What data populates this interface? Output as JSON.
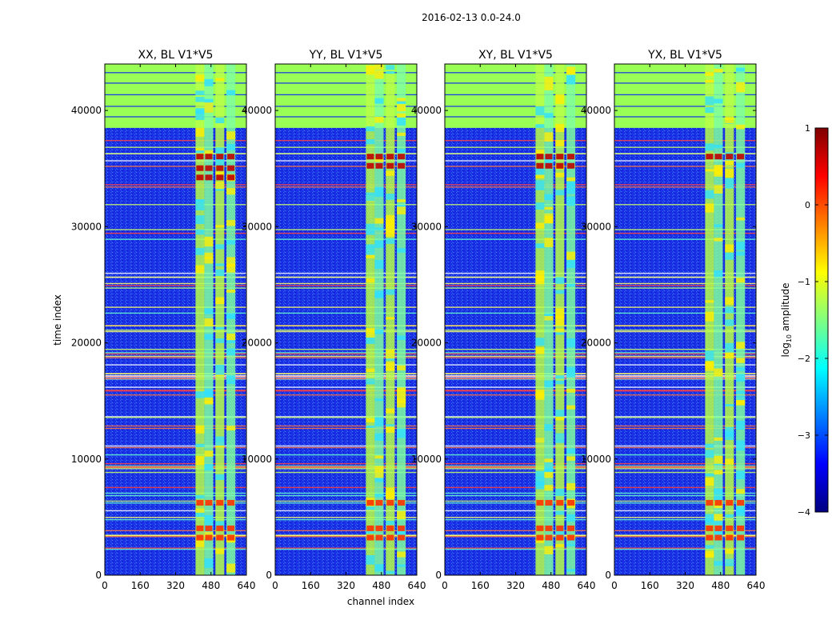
{
  "chart_data": {
    "type": "heatmap",
    "suptitle": "2016-02-13 0.0-24.0",
    "xlabel": "channel index",
    "ylabel": "time index",
    "xlim": [
      0,
      640
    ],
    "ylim": [
      0,
      44000
    ],
    "xticks": [
      0,
      160,
      320,
      480,
      640
    ],
    "yticks": [
      0,
      10000,
      20000,
      30000,
      40000
    ],
    "panels": [
      {
        "title": "XX, BL V1*V5",
        "rfi_bands": [
          [
            410,
            450
          ],
          [
            450,
            490
          ],
          [
            500,
            540
          ],
          [
            550,
            590
          ]
        ],
        "hot_rows": [
          36000,
          35000,
          34200,
          4000,
          3200,
          6200
        ]
      },
      {
        "title": "YY, BL V1*V5",
        "rfi_bands": [
          [
            410,
            450
          ],
          [
            450,
            490
          ],
          [
            500,
            540
          ],
          [
            550,
            590
          ]
        ],
        "hot_rows": [
          36000,
          35200,
          4000,
          3200,
          6200
        ]
      },
      {
        "title": "XY, BL V1*V5",
        "rfi_bands": [
          [
            410,
            450
          ],
          [
            450,
            490
          ],
          [
            500,
            540
          ],
          [
            550,
            590
          ]
        ],
        "hot_rows": [
          36000,
          35200,
          4000,
          6200,
          3200
        ]
      },
      {
        "title": "YX, BL V1*V5",
        "rfi_bands": [
          [
            410,
            450
          ],
          [
            450,
            490
          ],
          [
            500,
            540
          ],
          [
            550,
            590
          ]
        ],
        "hot_rows": [
          36000,
          4000,
          3200,
          6200
        ]
      }
    ],
    "flagged_region": [
      38500,
      44000
    ],
    "colorbar": {
      "label_prefix": "log",
      "label_sub": "10",
      "label_suffix": " amplitude",
      "range": [
        -4,
        1
      ],
      "ticks": [
        "1",
        "0",
        "−1",
        "−2",
        "−3",
        "−4"
      ],
      "colormap": "jet",
      "colors": [
        "#000080",
        "#0000ff",
        "#0080ff",
        "#00ffff",
        "#80ff80",
        "#ffff00",
        "#ff8000",
        "#ff0000",
        "#800000"
      ]
    }
  }
}
